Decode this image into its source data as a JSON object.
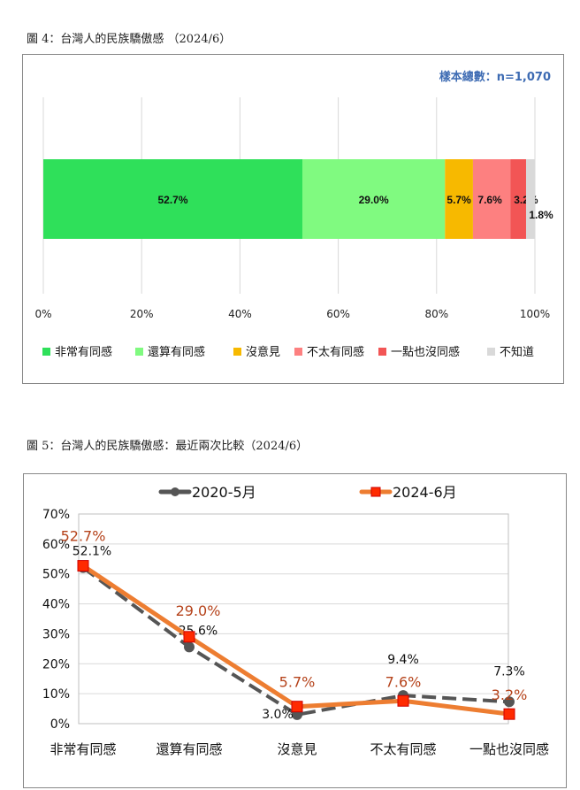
{
  "chart_data": [
    {
      "type": "bar",
      "stacked": true,
      "orientation": "horizontal",
      "title": "圖 4：台灣人的民族驕傲感 （2024/6）",
      "note": "樣本總數：n=1,070",
      "xlim": [
        0,
        100
      ],
      "ticks": [
        "0%",
        "20%",
        "40%",
        "60%",
        "80%",
        "100%"
      ],
      "grid": true,
      "legend_position": "bottom",
      "series": [
        {
          "name": "非常有同感",
          "value": 52.7,
          "label": "52.7%",
          "color": "#2fe05a"
        },
        {
          "name": "還算有同感",
          "value": 29.0,
          "label": "29.0%",
          "color": "#80fa80"
        },
        {
          "name": "沒意見",
          "value": 5.7,
          "label": "5.7%",
          "color": "#f7b900"
        },
        {
          "name": "不太有同感",
          "value": 7.6,
          "label": "7.6%",
          "color": "#fd8080"
        },
        {
          "name": "一點也沒同感",
          "value": 3.2,
          "label": "3.2%",
          "color": "#f25555"
        },
        {
          "name": "不知道",
          "value": 1.8,
          "label": "1.8%",
          "color": "#d9d9d9"
        }
      ]
    },
    {
      "type": "line",
      "title": "圖 5：台灣人的民族驕傲感：最近兩次比較（2024/6）",
      "categories": [
        "非常有同感",
        "還算有同感",
        "沒意見",
        "不太有同感",
        "一點也沒同感"
      ],
      "ylim": [
        0,
        70
      ],
      "yticks": [
        "0%",
        "10%",
        "20%",
        "30%",
        "40%",
        "50%",
        "60%",
        "70%"
      ],
      "grid": true,
      "legend_position": "top",
      "series": [
        {
          "name": "2020-5月",
          "values": [
            52.1,
            25.6,
            3.0,
            9.4,
            7.3
          ],
          "labels": [
            "52.1%",
            "25.6%",
            "3.0%",
            "9.4%",
            "7.3%"
          ],
          "color": "#555555",
          "marker": "circle",
          "dash": true,
          "label_color": "#111111"
        },
        {
          "name": "2024-6月",
          "values": [
            52.7,
            29.0,
            5.7,
            7.6,
            3.2
          ],
          "labels": [
            "52.7%",
            "29.0%",
            "5.7%",
            "7.6%",
            "3.2%"
          ],
          "color": "#ed7d31",
          "marker": "square",
          "marker_color": "#ff2a00",
          "dash": false,
          "label_color": "#b5421a"
        }
      ]
    }
  ]
}
